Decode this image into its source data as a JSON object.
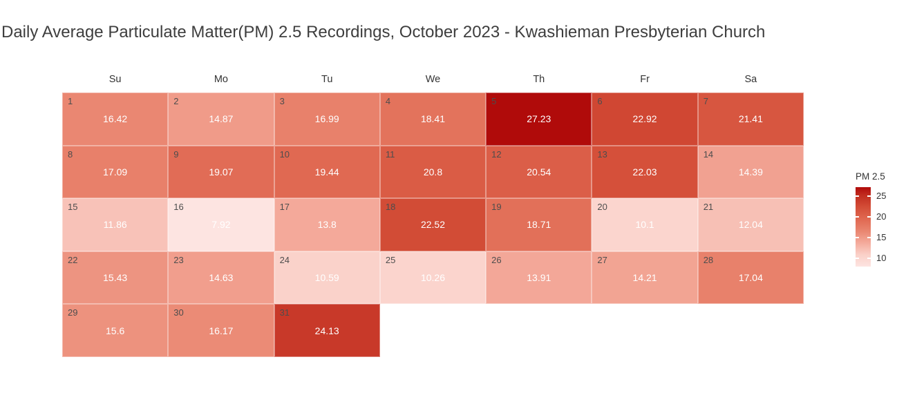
{
  "title": "Daily Average Particulate Matter(PM) 2.5 Recordings, October 2023 - Kwashieman Presbyterian Church",
  "weekday_headers": [
    "Su",
    "Mo",
    "Tu",
    "We",
    "Th",
    "Fr",
    "Sa"
  ],
  "legend": {
    "title": "PM 2.5",
    "ticks": [
      25,
      20,
      15,
      10
    ]
  },
  "color_scale": {
    "domain": [
      7.92,
      27.23
    ],
    "stops": [
      {
        "t": 0.0,
        "color": [
          253,
          228,
          225
        ]
      },
      {
        "t": 0.15,
        "color": [
          250,
          208,
          200
        ]
      },
      {
        "t": 0.3,
        "color": [
          244,
          170,
          155
        ]
      },
      {
        "t": 0.45,
        "color": [
          233,
          133,
          111
        ]
      },
      {
        "t": 0.6,
        "color": [
          224,
          104,
          81
        ]
      },
      {
        "t": 0.75,
        "color": [
          211,
          77,
          55
        ]
      },
      {
        "t": 0.9,
        "color": [
          193,
          44,
          31
        ]
      },
      {
        "t": 1.0,
        "color": [
          176,
          11,
          10
        ]
      }
    ],
    "min_hex": "#fde4e1",
    "max_hex": "#b00b0a"
  },
  "chart_data": {
    "type": "heatmap",
    "title": "Daily Average Particulate Matter(PM) 2.5 Recordings, October 2023 - Kwashieman Presbyterian Church",
    "month": "October 2023",
    "location": "Kwashieman Presbyterian Church",
    "value_label": "PM 2.5",
    "value_range": [
      7.92,
      27.23
    ],
    "legend_position": "right",
    "days": [
      {
        "day": 1,
        "weekday": "Su",
        "week": 0,
        "value": 16.42
      },
      {
        "day": 2,
        "weekday": "Mo",
        "week": 0,
        "value": 14.87
      },
      {
        "day": 3,
        "weekday": "Tu",
        "week": 0,
        "value": 16.99
      },
      {
        "day": 4,
        "weekday": "We",
        "week": 0,
        "value": 18.41
      },
      {
        "day": 5,
        "weekday": "Th",
        "week": 0,
        "value": 27.23
      },
      {
        "day": 6,
        "weekday": "Fr",
        "week": 0,
        "value": 22.92
      },
      {
        "day": 7,
        "weekday": "Sa",
        "week": 0,
        "value": 21.41
      },
      {
        "day": 8,
        "weekday": "Su",
        "week": 1,
        "value": 17.09
      },
      {
        "day": 9,
        "weekday": "Mo",
        "week": 1,
        "value": 19.07
      },
      {
        "day": 10,
        "weekday": "Tu",
        "week": 1,
        "value": 19.44
      },
      {
        "day": 11,
        "weekday": "We",
        "week": 1,
        "value": 20.8
      },
      {
        "day": 12,
        "weekday": "Th",
        "week": 1,
        "value": 20.54
      },
      {
        "day": 13,
        "weekday": "Fr",
        "week": 1,
        "value": 22.03
      },
      {
        "day": 14,
        "weekday": "Sa",
        "week": 1,
        "value": 14.39
      },
      {
        "day": 15,
        "weekday": "Su",
        "week": 2,
        "value": 11.86
      },
      {
        "day": 16,
        "weekday": "Mo",
        "week": 2,
        "value": 7.92
      },
      {
        "day": 17,
        "weekday": "Tu",
        "week": 2,
        "value": 13.8
      },
      {
        "day": 18,
        "weekday": "We",
        "week": 2,
        "value": 22.52
      },
      {
        "day": 19,
        "weekday": "Th",
        "week": 2,
        "value": 18.71
      },
      {
        "day": 20,
        "weekday": "Fr",
        "week": 2,
        "value": 10.1
      },
      {
        "day": 21,
        "weekday": "Sa",
        "week": 2,
        "value": 12.04
      },
      {
        "day": 22,
        "weekday": "Su",
        "week": 3,
        "value": 15.43
      },
      {
        "day": 23,
        "weekday": "Mo",
        "week": 3,
        "value": 14.63
      },
      {
        "day": 24,
        "weekday": "Tu",
        "week": 3,
        "value": 10.59
      },
      {
        "day": 25,
        "weekday": "We",
        "week": 3,
        "value": 10.26
      },
      {
        "day": 26,
        "weekday": "Th",
        "week": 3,
        "value": 13.91
      },
      {
        "day": 27,
        "weekday": "Fr",
        "week": 3,
        "value": 14.21
      },
      {
        "day": 28,
        "weekday": "Sa",
        "week": 3,
        "value": 17.04
      },
      {
        "day": 29,
        "weekday": "Su",
        "week": 4,
        "value": 15.6
      },
      {
        "day": 30,
        "weekday": "Mo",
        "week": 4,
        "value": 16.17
      },
      {
        "day": 31,
        "weekday": "Tu",
        "week": 4,
        "value": 24.13
      }
    ]
  }
}
